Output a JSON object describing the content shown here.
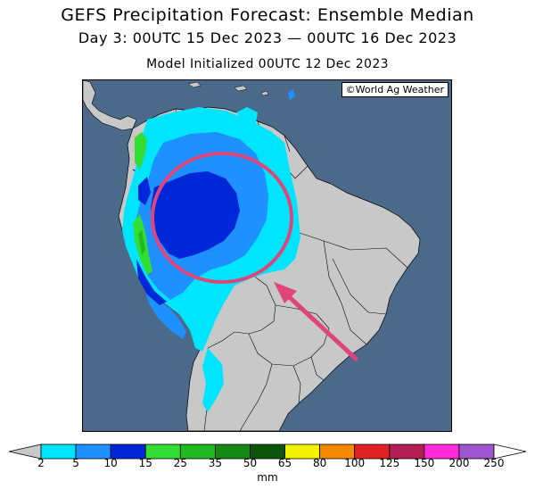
{
  "title": "GEFS Precipitation Forecast: Ensemble Median",
  "subtitle": "Day 3: 00UTC 15 Dec 2023 — 00UTC 16 Dec 2023",
  "init_line": "Model Initialized 00UTC 12 Dec 2023",
  "credit": "©World Ag Weather",
  "colors": {
    "ocean": "#4b6a8a",
    "land": "#c8c8c8",
    "highlight": "#e0457a"
  },
  "colorbar": {
    "unit": "mm",
    "ticks": [
      "2",
      "5",
      "10",
      "15",
      "25",
      "35",
      "50",
      "65",
      "80",
      "100",
      "125",
      "150",
      "200",
      "250"
    ],
    "colors": [
      "#00e5ff",
      "#1e90ff",
      "#0028d8",
      "#33dd33",
      "#22b822",
      "#148a14",
      "#0a550a",
      "#f2f200",
      "#f58a00",
      "#e02222",
      "#b31e55",
      "#ff2ad8",
      "#a055d0"
    ],
    "under_color": "#c8c8c8",
    "over_color": "#ffffff"
  },
  "annotations": [
    "ellipse-highlight",
    "arrow-pointer"
  ]
}
